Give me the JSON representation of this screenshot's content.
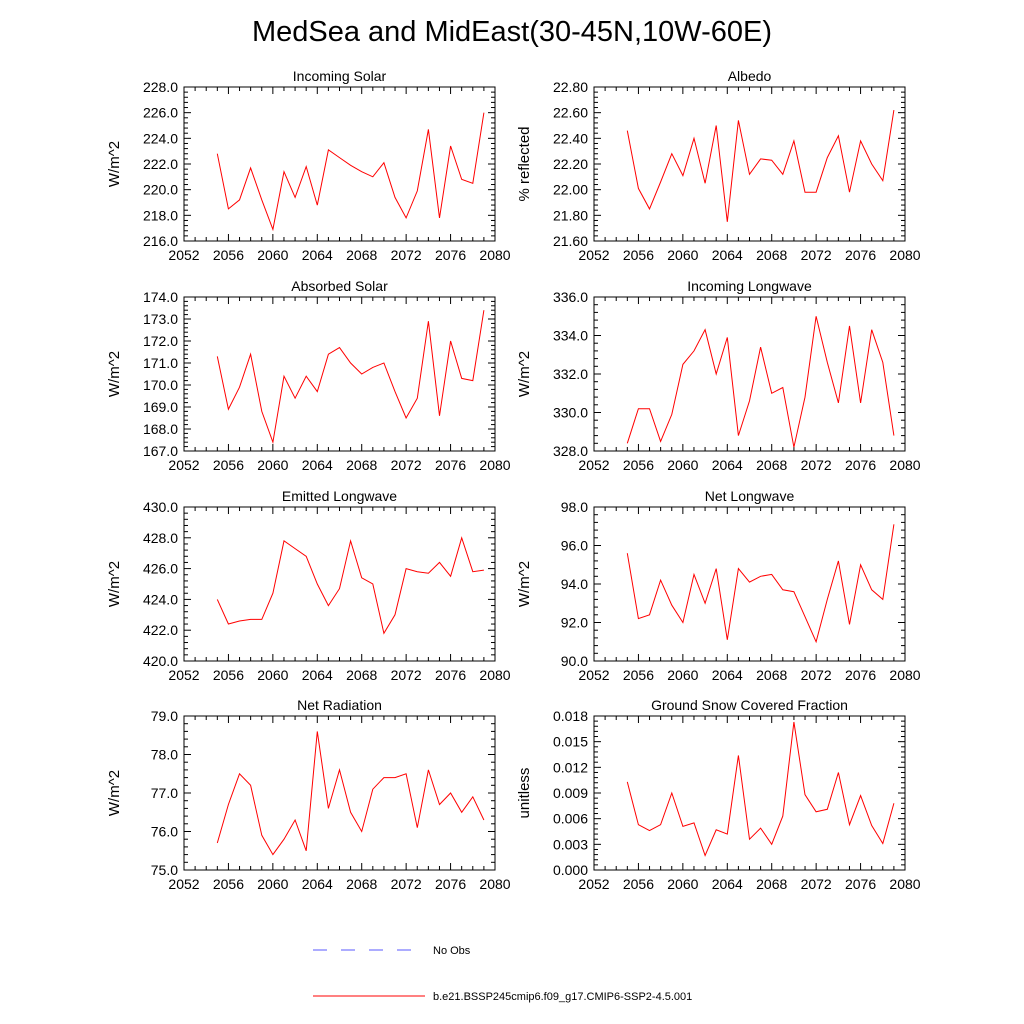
{
  "title": "MedSea and MidEast(30-45N,10W-60E)",
  "legend": {
    "entries": [
      {
        "label": "No Obs",
        "style": "dashed",
        "color": "#5a5aff"
      },
      {
        "label": "b.e21.BSSP245cmip6.f09_g17.CMIP6-SSP2-4.5.001",
        "style": "solid",
        "color": "#ff0000"
      }
    ]
  },
  "chart_data": [
    {
      "type": "line",
      "title": "Incoming Solar",
      "ylabel": "W/m^2",
      "xlim": [
        2052,
        2080
      ],
      "xticks": [
        "2052",
        "2056",
        "2060",
        "2064",
        "2068",
        "2072",
        "2076",
        "2080"
      ],
      "ylim": [
        216,
        228
      ],
      "yticks": [
        "216.0",
        "218.0",
        "220.0",
        "222.0",
        "224.0",
        "226.0",
        "228.0"
      ],
      "grid": false,
      "series": [
        {
          "color": "#ff0000",
          "x": [
            2055,
            2056,
            2057,
            2058,
            2059,
            2060,
            2061,
            2062,
            2063,
            2064,
            2065,
            2066,
            2067,
            2068,
            2069,
            2070,
            2071,
            2072,
            2073,
            2074,
            2075,
            2076,
            2077,
            2078,
            2079
          ],
          "values": [
            222.8,
            218.5,
            219.2,
            221.7,
            219.2,
            216.9,
            221.4,
            219.4,
            221.8,
            218.8,
            223.1,
            222.5,
            221.9,
            221.4,
            221.0,
            222.1,
            219.4,
            217.8,
            219.9,
            224.7,
            217.8,
            223.4,
            220.8,
            220.5,
            226.0
          ]
        }
      ]
    },
    {
      "type": "line",
      "title": "Albedo",
      "ylabel": "% reflected",
      "xlim": [
        2052,
        2080
      ],
      "xticks": [
        "2052",
        "2056",
        "2060",
        "2064",
        "2068",
        "2072",
        "2076",
        "2080"
      ],
      "ylim": [
        21.6,
        22.8
      ],
      "yticks": [
        "21.60",
        "21.80",
        "22.00",
        "22.20",
        "22.40",
        "22.60",
        "22.80"
      ],
      "grid": false,
      "series": [
        {
          "color": "#ff0000",
          "x": [
            2055,
            2056,
            2057,
            2058,
            2059,
            2060,
            2061,
            2062,
            2063,
            2064,
            2065,
            2066,
            2067,
            2068,
            2069,
            2070,
            2071,
            2072,
            2073,
            2074,
            2075,
            2076,
            2077,
            2078,
            2079
          ],
          "values": [
            22.46,
            22.01,
            21.85,
            22.06,
            22.28,
            22.11,
            22.4,
            22.05,
            22.5,
            21.75,
            22.54,
            22.12,
            22.24,
            22.23,
            22.12,
            22.38,
            21.98,
            21.98,
            22.25,
            22.42,
            21.98,
            22.38,
            22.2,
            22.07,
            22.62
          ]
        }
      ]
    },
    {
      "type": "line",
      "title": "Absorbed Solar",
      "ylabel": "W/m^2",
      "xlim": [
        2052,
        2080
      ],
      "xticks": [
        "2052",
        "2056",
        "2060",
        "2064",
        "2068",
        "2072",
        "2076",
        "2080"
      ],
      "ylim": [
        167,
        174
      ],
      "yticks": [
        "167.0",
        "168.0",
        "169.0",
        "170.0",
        "171.0",
        "172.0",
        "173.0",
        "174.0"
      ],
      "grid": false,
      "series": [
        {
          "color": "#ff0000",
          "x": [
            2055,
            2056,
            2057,
            2058,
            2059,
            2060,
            2061,
            2062,
            2063,
            2064,
            2065,
            2066,
            2067,
            2068,
            2069,
            2070,
            2071,
            2072,
            2073,
            2074,
            2075,
            2076,
            2077,
            2078,
            2079
          ],
          "values": [
            171.3,
            168.9,
            169.9,
            171.4,
            168.8,
            167.4,
            170.4,
            169.4,
            170.4,
            169.7,
            171.4,
            171.7,
            171.0,
            170.5,
            170.8,
            171.0,
            169.7,
            168.5,
            169.4,
            172.9,
            168.6,
            172.0,
            170.3,
            170.2,
            173.4
          ]
        }
      ]
    },
    {
      "type": "line",
      "title": "Incoming Longwave",
      "ylabel": "W/m^2",
      "xlim": [
        2052,
        2080
      ],
      "xticks": [
        "2052",
        "2056",
        "2060",
        "2064",
        "2068",
        "2072",
        "2076",
        "2080"
      ],
      "ylim": [
        328,
        336
      ],
      "yticks": [
        "328.0",
        "330.0",
        "332.0",
        "334.0",
        "336.0"
      ],
      "grid": false,
      "series": [
        {
          "color": "#ff0000",
          "x": [
            2055,
            2056,
            2057,
            2058,
            2059,
            2060,
            2061,
            2062,
            2063,
            2064,
            2065,
            2066,
            2067,
            2068,
            2069,
            2070,
            2071,
            2072,
            2073,
            2074,
            2075,
            2076,
            2077,
            2078,
            2079
          ],
          "values": [
            328.4,
            330.2,
            330.2,
            328.5,
            329.9,
            332.5,
            333.2,
            334.3,
            332.0,
            333.9,
            328.8,
            330.6,
            333.4,
            331.0,
            331.3,
            328.2,
            330.8,
            335.0,
            332.6,
            330.5,
            334.5,
            330.5,
            334.3,
            332.6,
            328.8
          ]
        }
      ]
    },
    {
      "type": "line",
      "title": "Emitted Longwave",
      "ylabel": "W/m^2",
      "xlim": [
        2052,
        2080
      ],
      "xticks": [
        "2052",
        "2056",
        "2060",
        "2064",
        "2068",
        "2072",
        "2076",
        "2080"
      ],
      "ylim": [
        420,
        430
      ],
      "yticks": [
        "420.0",
        "422.0",
        "424.0",
        "426.0",
        "428.0",
        "430.0"
      ],
      "grid": false,
      "series": [
        {
          "color": "#ff0000",
          "x": [
            2055,
            2056,
            2057,
            2058,
            2059,
            2060,
            2061,
            2062,
            2063,
            2064,
            2065,
            2066,
            2067,
            2068,
            2069,
            2070,
            2071,
            2072,
            2073,
            2074,
            2075,
            2076,
            2077,
            2078,
            2079
          ],
          "values": [
            424.0,
            422.4,
            422.6,
            422.7,
            422.7,
            424.4,
            427.8,
            427.3,
            426.8,
            425.0,
            423.6,
            424.7,
            427.8,
            425.4,
            425.0,
            421.8,
            423.0,
            426.0,
            425.8,
            425.7,
            426.4,
            425.5,
            428.0,
            425.8,
            425.9
          ]
        }
      ]
    },
    {
      "type": "line",
      "title": "Net Longwave",
      "ylabel": "W/m^2",
      "xlim": [
        2052,
        2080
      ],
      "xticks": [
        "2052",
        "2056",
        "2060",
        "2064",
        "2068",
        "2072",
        "2076",
        "2080"
      ],
      "ylim": [
        90,
        98
      ],
      "yticks": [
        "90.0",
        "92.0",
        "94.0",
        "96.0",
        "98.0"
      ],
      "grid": false,
      "series": [
        {
          "color": "#ff0000",
          "x": [
            2055,
            2056,
            2057,
            2058,
            2059,
            2060,
            2061,
            2062,
            2063,
            2064,
            2065,
            2066,
            2067,
            2068,
            2069,
            2070,
            2071,
            2072,
            2073,
            2074,
            2075,
            2076,
            2077,
            2078,
            2079
          ],
          "values": [
            95.6,
            92.2,
            92.4,
            94.2,
            92.9,
            92.0,
            94.5,
            93.0,
            94.8,
            91.1,
            94.8,
            94.1,
            94.4,
            94.5,
            93.7,
            93.6,
            92.3,
            91.0,
            93.2,
            95.2,
            91.9,
            95.0,
            93.7,
            93.2,
            97.1
          ]
        }
      ]
    },
    {
      "type": "line",
      "title": "Net Radiation",
      "ylabel": "W/m^2",
      "xlim": [
        2052,
        2080
      ],
      "xticks": [
        "2052",
        "2056",
        "2060",
        "2064",
        "2068",
        "2072",
        "2076",
        "2080"
      ],
      "ylim": [
        75,
        79
      ],
      "yticks": [
        "75.0",
        "76.0",
        "77.0",
        "78.0",
        "79.0"
      ],
      "grid": false,
      "series": [
        {
          "color": "#ff0000",
          "x": [
            2055,
            2056,
            2057,
            2058,
            2059,
            2060,
            2061,
            2062,
            2063,
            2064,
            2065,
            2066,
            2067,
            2068,
            2069,
            2070,
            2071,
            2072,
            2073,
            2074,
            2075,
            2076,
            2077,
            2078,
            2079
          ],
          "values": [
            75.7,
            76.7,
            77.5,
            77.2,
            75.9,
            75.4,
            75.8,
            76.3,
            75.5,
            78.6,
            76.6,
            77.6,
            76.5,
            76.0,
            77.1,
            77.4,
            77.4,
            77.5,
            76.1,
            77.6,
            76.7,
            77.0,
            76.5,
            76.9,
            76.3
          ]
        }
      ]
    },
    {
      "type": "line",
      "title": "Ground Snow Covered Fraction",
      "ylabel": "unitless",
      "xlim": [
        2052,
        2080
      ],
      "xticks": [
        "2052",
        "2056",
        "2060",
        "2064",
        "2068",
        "2072",
        "2076",
        "2080"
      ],
      "ylim": [
        0,
        0.018
      ],
      "yticks": [
        "0.000",
        "0.003",
        "0.006",
        "0.009",
        "0.012",
        "0.015",
        "0.018"
      ],
      "grid": false,
      "series": [
        {
          "color": "#ff0000",
          "x": [
            2055,
            2056,
            2057,
            2058,
            2059,
            2060,
            2061,
            2062,
            2063,
            2064,
            2065,
            2066,
            2067,
            2068,
            2069,
            2070,
            2071,
            2072,
            2073,
            2074,
            2075,
            2076,
            2077,
            2078,
            2079
          ],
          "values": [
            0.0103,
            0.0053,
            0.0046,
            0.0053,
            0.009,
            0.0051,
            0.0055,
            0.0017,
            0.0047,
            0.0042,
            0.0134,
            0.0036,
            0.0049,
            0.003,
            0.0063,
            0.0173,
            0.0088,
            0.0068,
            0.0071,
            0.0114,
            0.0053,
            0.0087,
            0.0052,
            0.0031,
            0.0078
          ]
        }
      ]
    }
  ]
}
